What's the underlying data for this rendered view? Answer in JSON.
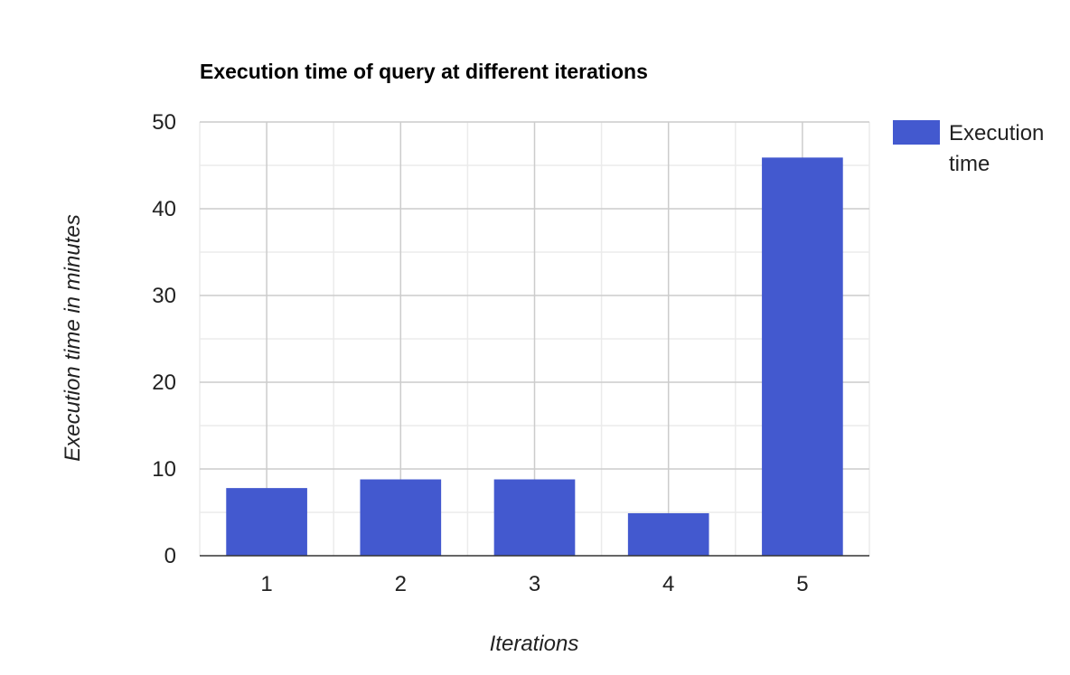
{
  "chart_data": {
    "type": "bar",
    "title": "Execution time of query at different iterations",
    "xlabel": "Iterations",
    "ylabel": "Execution time in minutes",
    "categories": [
      "1",
      "2",
      "3",
      "4",
      "5"
    ],
    "series": [
      {
        "name": "Execution time",
        "values": [
          7.8,
          8.8,
          8.8,
          4.9,
          45.9
        ]
      }
    ],
    "ylim": [
      0,
      50
    ],
    "yticks": [
      0,
      10,
      20,
      30,
      40,
      50
    ],
    "y_minor_step": 5,
    "grid": true,
    "legend": {
      "position": "right",
      "lines": [
        "Execution",
        "time"
      ]
    },
    "colors": {
      "bar": "#4359cf",
      "major_grid": "#cccccc",
      "minor_grid": "#ebebeb",
      "baseline": "#333333",
      "title": "#000000",
      "tick_text": "#222222",
      "axis_title": "#222222"
    }
  }
}
